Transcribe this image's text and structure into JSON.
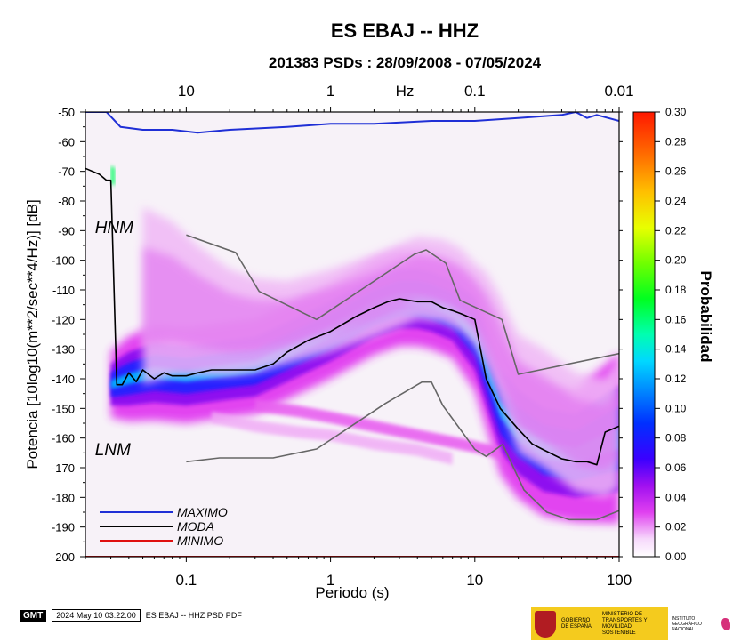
{
  "title": "ES EBAJ -- HHZ",
  "subtitle": "201383 PSDs : 28/09/2008 - 07/05/2024",
  "footer": {
    "gmt": "GMT",
    "timestamp": "2024 May 10 03:22:00",
    "label": "ES EBAJ -- HHZ PSD PDF"
  },
  "logos": {
    "gov_text": "GOBIERNO DE ESPAÑA",
    "ministry_text": "MINISTERIO DE TRANSPORTES Y MOVILIDAD SOSTENIBLE",
    "ign_text": "INSTITUTO GEOGRÁFICO NACIONAL"
  },
  "colors": {
    "maximo": "#1f2fd6",
    "moda": "#000000",
    "minimo": "#e01010",
    "nlnm": "#666666"
  },
  "chart_data": {
    "type": "heatmap",
    "xlabel": "Periodo (s)",
    "ylabel": "Potencia [10log10(m**2/sec**4/Hz)] [dB]",
    "xscale": "log",
    "xlim": [
      0.02,
      100
    ],
    "ylim": [
      -200,
      -50
    ],
    "xticks": [
      {
        "value": 0.1,
        "label": "0.1"
      },
      {
        "value": 1,
        "label": "1"
      },
      {
        "value": 10,
        "label": "10"
      },
      {
        "value": 100,
        "label": "100"
      }
    ],
    "yticks": [
      {
        "value": -50,
        "label": "-50"
      },
      {
        "value": -60,
        "label": "-60"
      },
      {
        "value": -70,
        "label": "-70"
      },
      {
        "value": -80,
        "label": "-80"
      },
      {
        "value": -90,
        "label": "-90"
      },
      {
        "value": -100,
        "label": "-100"
      },
      {
        "value": -110,
        "label": "-110"
      },
      {
        "value": -120,
        "label": "-120"
      },
      {
        "value": -130,
        "label": "-130"
      },
      {
        "value": -140,
        "label": "-140"
      },
      {
        "value": -150,
        "label": "-150"
      },
      {
        "value": -160,
        "label": "-160"
      },
      {
        "value": -170,
        "label": "-170"
      },
      {
        "value": -180,
        "label": "-180"
      },
      {
        "value": -190,
        "label": "-190"
      },
      {
        "value": -200,
        "label": "-200"
      }
    ],
    "top_axis": {
      "label": "Hz",
      "ticks": [
        {
          "value": 10,
          "label": "10"
        },
        {
          "value": 1,
          "label": "1"
        },
        {
          "value": 0.1,
          "label": "0.1"
        },
        {
          "value": 0.01,
          "label": "0.01"
        }
      ]
    },
    "colorbar": {
      "label": "Probabilidad",
      "range": [
        0,
        0.3
      ],
      "ticks": [
        "0.00",
        "0.02",
        "0.04",
        "0.06",
        "0.08",
        "0.10",
        "0.12",
        "0.14",
        "0.16",
        "0.18",
        "0.20",
        "0.22",
        "0.24",
        "0.26",
        "0.28",
        "0.30"
      ]
    },
    "annotations": [
      {
        "text": "HNM",
        "x": 0.022,
        "y": -89
      },
      {
        "text": "LNM",
        "x": 0.022,
        "y": -164
      }
    ],
    "legend": {
      "position": "bottom-left",
      "entries": [
        {
          "label": "MAXIMO",
          "series": "maximo"
        },
        {
          "label": "MODA",
          "series": "moda"
        },
        {
          "label": "MINIMO",
          "series": "minimo"
        }
      ]
    },
    "series": [
      {
        "id": "maximo",
        "x": [
          0.02,
          0.028,
          0.035,
          0.05,
          0.08,
          0.12,
          0.2,
          0.5,
          1,
          2,
          5,
          10,
          20,
          40,
          50,
          60,
          70,
          100
        ],
        "y": [
          -50,
          -50,
          -55,
          -56,
          -56,
          -57,
          -56,
          -55,
          -54,
          -54,
          -53,
          -53,
          -52,
          -51,
          -50,
          -52,
          -51,
          -53
        ]
      },
      {
        "id": "moda",
        "x": [
          0.02,
          0.025,
          0.028,
          0.03,
          0.033,
          0.036,
          0.04,
          0.045,
          0.05,
          0.06,
          0.07,
          0.08,
          0.1,
          0.12,
          0.15,
          0.2,
          0.3,
          0.4,
          0.5,
          0.7,
          1,
          1.5,
          2,
          2.5,
          3,
          4,
          5,
          6,
          7,
          8,
          10,
          12,
          15,
          20,
          25,
          30,
          40,
          50,
          60,
          70,
          80,
          100
        ],
        "y": [
          -69,
          -71,
          -73,
          -73,
          -142,
          -142,
          -138,
          -141,
          -137,
          -140,
          -138,
          -139,
          -139,
          -138,
          -137,
          -137,
          -137,
          -135,
          -131,
          -127,
          -124,
          -119,
          -116,
          -114,
          -113,
          -114,
          -114,
          -116,
          -117,
          -118,
          -120,
          -140,
          -150,
          -157,
          -162,
          -164,
          -167,
          -168,
          -168,
          -169,
          -158,
          -156
        ]
      },
      {
        "id": "minimo",
        "x": [
          0.02,
          100
        ],
        "y": [
          -200,
          -200
        ]
      },
      {
        "id": "nhnm",
        "x": [
          0.1,
          0.22,
          0.32,
          0.8,
          3.8,
          4.6,
          6.3,
          7.9,
          15.4,
          20,
          100
        ],
        "y": [
          -91.5,
          -97.4,
          -110.5,
          -120,
          -98,
          -96.5,
          -101,
          -113.5,
          -120,
          -138.5,
          -131.5
        ]
      },
      {
        "id": "nlnm",
        "x": [
          0.1,
          0.17,
          0.4,
          0.8,
          1.24,
          2.4,
          4.3,
          5,
          6,
          10,
          12,
          15.6,
          21.9,
          31.6,
          45,
          70,
          101
        ],
        "y": [
          -168,
          -166.7,
          -166.7,
          -163.7,
          -157.6,
          -148.3,
          -141.1,
          -141.1,
          -149,
          -163.8,
          -166.2,
          -162.1,
          -177.5,
          -185,
          -187.5,
          -187.5,
          -184.4
        ]
      }
    ],
    "density_bands": [
      {
        "name": "main",
        "x": [
          0.03,
          0.04,
          0.06,
          0.1,
          0.2,
          0.3,
          0.5,
          1,
          2,
          3,
          4,
          5,
          7,
          10,
          15,
          20,
          30,
          50,
          100
        ],
        "y": [
          -142,
          -140,
          -138,
          -139,
          -137,
          -136,
          -131,
          -124,
          -116,
          -113,
          -113,
          -114,
          -117,
          -125,
          -150,
          -158,
          -164,
          -166,
          -160
        ],
        "width": [
          7,
          9,
          10,
          10,
          10,
          10,
          10,
          10,
          10,
          10,
          10,
          10,
          10,
          12,
          14,
          14,
          14,
          14,
          18
        ]
      },
      {
        "name": "upper-haze",
        "x": [
          0.05,
          0.08,
          0.12,
          0.2,
          0.3,
          0.5,
          1,
          2,
          4,
          6,
          8,
          10,
          12,
          15,
          20,
          30,
          50,
          80,
          100
        ],
        "y": [
          -112,
          -113,
          -117,
          -121,
          -122,
          -121,
          -117,
          -112,
          -106,
          -107,
          -110,
          -115,
          -120,
          -130,
          -145,
          -150,
          -158,
          -160,
          -155
        ],
        "width": [
          30,
          26,
          22,
          18,
          16,
          14,
          14,
          14,
          14,
          14,
          14,
          14,
          16,
          18,
          20,
          20,
          20,
          20,
          22
        ]
      },
      {
        "name": "streak-a",
        "x": [
          0.3,
          0.6,
          1,
          2,
          5,
          10,
          15
        ],
        "y": [
          -149,
          -151,
          -153,
          -156,
          -160,
          -163,
          -165
        ],
        "width": [
          2,
          2,
          2,
          2,
          2,
          2,
          2
        ]
      },
      {
        "name": "streak-b",
        "x": [
          0.15,
          0.3,
          0.6,
          1,
          2,
          4,
          7
        ],
        "y": [
          -153,
          -156,
          -158,
          -159,
          -162,
          -164,
          -167
        ],
        "width": [
          2,
          2,
          2,
          2,
          2,
          2,
          2
        ]
      },
      {
        "name": "low-hook",
        "x": [
          0.03,
          0.032
        ],
        "y": [
          -71,
          -72
        ],
        "width": [
          3,
          3
        ]
      }
    ]
  }
}
